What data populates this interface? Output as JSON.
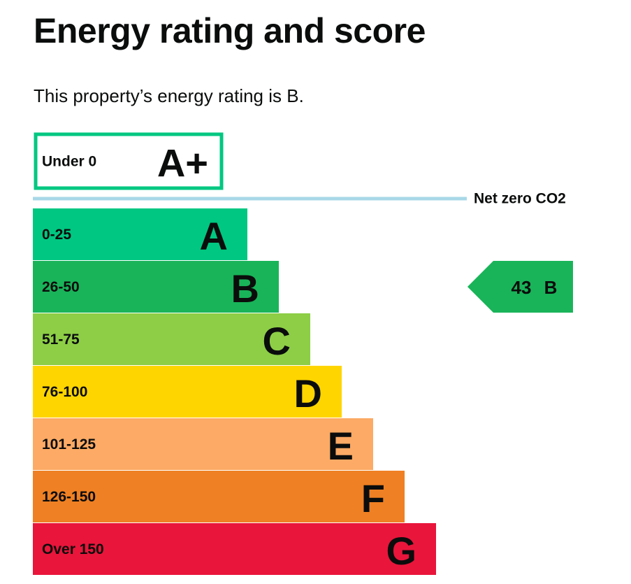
{
  "page": {
    "title": "Energy rating and score",
    "summary": "This property’s energy rating is B."
  },
  "chart_data": {
    "type": "bar",
    "bands": [
      {
        "range": "Under 0",
        "letter": "A+",
        "color": "#00c781",
        "style": "outline"
      },
      {
        "range": "0-25",
        "letter": "A",
        "color": "#00c781"
      },
      {
        "range": "26-50",
        "letter": "B",
        "color": "#19b459"
      },
      {
        "range": "51-75",
        "letter": "C",
        "color": "#8dce46"
      },
      {
        "range": "76-100",
        "letter": "D",
        "color": "#ffd500"
      },
      {
        "range": "101-125",
        "letter": "E",
        "color": "#fcaa65"
      },
      {
        "range": "126-150",
        "letter": "F",
        "color": "#ef8023"
      },
      {
        "range": "Over 150",
        "letter": "G",
        "color": "#e9153b"
      }
    ],
    "net_zero": {
      "label": "Net zero CO2",
      "color": "#a8d8e8"
    },
    "current": {
      "score": "43",
      "band": "B",
      "color": "#19b459"
    }
  }
}
